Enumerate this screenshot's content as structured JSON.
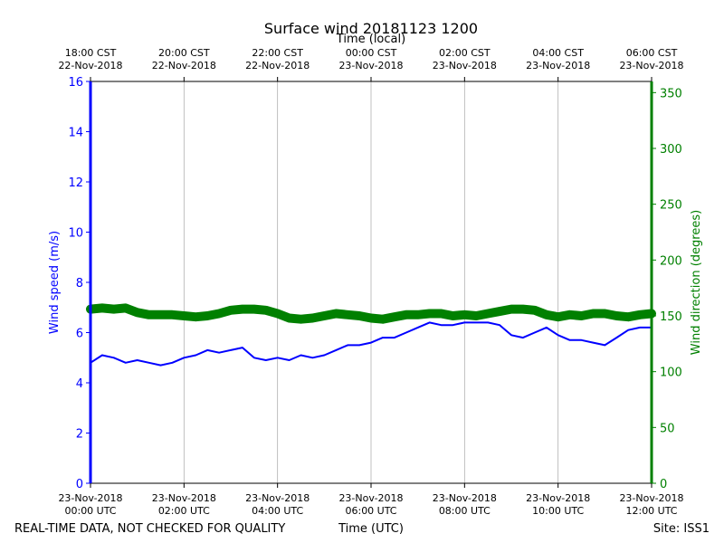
{
  "chart_data": {
    "type": "line",
    "title": "Surface wind 20181123 1200",
    "top_axis_label": "Time (local)",
    "xlabel": "Time (UTC)",
    "ylabel_left": "Wind speed (m/s)",
    "ylabel_right": "Wind direction (degrees)",
    "footer_left": "REAL-TIME DATA, NOT CHECKED FOR QUALITY",
    "footer_right": "Site: ISS1",
    "x_hours_range": [
      0,
      12
    ],
    "ylim_left": [
      0,
      16
    ],
    "ylim_right": [
      0,
      360
    ],
    "yticks_left": [
      "0",
      "2",
      "4",
      "6",
      "8",
      "10",
      "12",
      "14",
      "16"
    ],
    "yticks_right": [
      "0",
      "50",
      "100",
      "150",
      "200",
      "250",
      "300",
      "350"
    ],
    "x_ticks_bottom": [
      {
        "l1": "23-Nov-2018",
        "l2": "00:00 UTC"
      },
      {
        "l1": "23-Nov-2018",
        "l2": "02:00 UTC"
      },
      {
        "l1": "23-Nov-2018",
        "l2": "04:00 UTC"
      },
      {
        "l1": "23-Nov-2018",
        "l2": "06:00 UTC"
      },
      {
        "l1": "23-Nov-2018",
        "l2": "08:00 UTC"
      },
      {
        "l1": "23-Nov-2018",
        "l2": "10:00 UTC"
      },
      {
        "l1": "23-Nov-2018",
        "l2": "12:00 UTC"
      }
    ],
    "x_ticks_top": [
      {
        "l1": "18:00 CST",
        "l2": "22-Nov-2018"
      },
      {
        "l1": "20:00 CST",
        "l2": "22-Nov-2018"
      },
      {
        "l1": "22:00 CST",
        "l2": "22-Nov-2018"
      },
      {
        "l1": "00:00 CST",
        "l2": "23-Nov-2018"
      },
      {
        "l1": "02:00 CST",
        "l2": "23-Nov-2018"
      },
      {
        "l1": "04:00 CST",
        "l2": "23-Nov-2018"
      },
      {
        "l1": "06:00 CST",
        "l2": "23-Nov-2018"
      }
    ],
    "grid": "vertical",
    "series": [
      {
        "name": "Wind speed (m/s)",
        "axis": "left",
        "color": "#0000ff",
        "x": [
          0,
          0.25,
          0.5,
          0.75,
          1,
          1.25,
          1.5,
          1.75,
          2,
          2.25,
          2.5,
          2.75,
          3,
          3.25,
          3.5,
          3.75,
          4,
          4.25,
          4.5,
          4.75,
          5,
          5.25,
          5.5,
          5.75,
          6,
          6.25,
          6.5,
          6.75,
          7,
          7.25,
          7.5,
          7.75,
          8,
          8.25,
          8.5,
          8.75,
          9,
          9.25,
          9.5,
          9.75,
          10,
          10.25,
          10.5,
          10.75,
          11,
          11.25,
          11.5,
          11.75,
          12
        ],
        "values": [
          4.8,
          5.1,
          5.0,
          4.8,
          4.9,
          4.8,
          4.7,
          4.8,
          5.0,
          5.1,
          5.3,
          5.2,
          5.3,
          5.4,
          5.0,
          4.9,
          5.0,
          4.9,
          5.1,
          5.0,
          5.1,
          5.3,
          5.5,
          5.5,
          5.6,
          5.8,
          5.8,
          6.0,
          6.2,
          6.4,
          6.3,
          6.3,
          6.4,
          6.4,
          6.4,
          6.3,
          5.9,
          5.8,
          6.0,
          6.2,
          5.9,
          5.7,
          5.7,
          5.6,
          5.5,
          5.8,
          6.1,
          6.2,
          6.2
        ]
      },
      {
        "name": "Wind direction (degrees)",
        "axis": "right",
        "color": "#008000",
        "x": [
          0,
          0.25,
          0.5,
          0.75,
          1,
          1.25,
          1.5,
          1.75,
          2,
          2.25,
          2.5,
          2.75,
          3,
          3.25,
          3.5,
          3.75,
          4,
          4.25,
          4.5,
          4.75,
          5,
          5.25,
          5.5,
          5.75,
          6,
          6.25,
          6.5,
          6.75,
          7,
          7.25,
          7.5,
          7.75,
          8,
          8.25,
          8.5,
          8.75,
          9,
          9.25,
          9.5,
          9.75,
          10,
          10.25,
          10.5,
          10.75,
          11,
          11.25,
          11.5,
          11.75,
          12
        ],
        "values": [
          156,
          157,
          156,
          157,
          153,
          151,
          151,
          151,
          150,
          149,
          150,
          152,
          155,
          156,
          156,
          155,
          152,
          148,
          147,
          148,
          150,
          152,
          151,
          150,
          148,
          147,
          149,
          151,
          151,
          152,
          152,
          150,
          151,
          150,
          152,
          154,
          156,
          156,
          155,
          151,
          149,
          151,
          150,
          152,
          152,
          150,
          149,
          151,
          152
        ]
      }
    ]
  }
}
